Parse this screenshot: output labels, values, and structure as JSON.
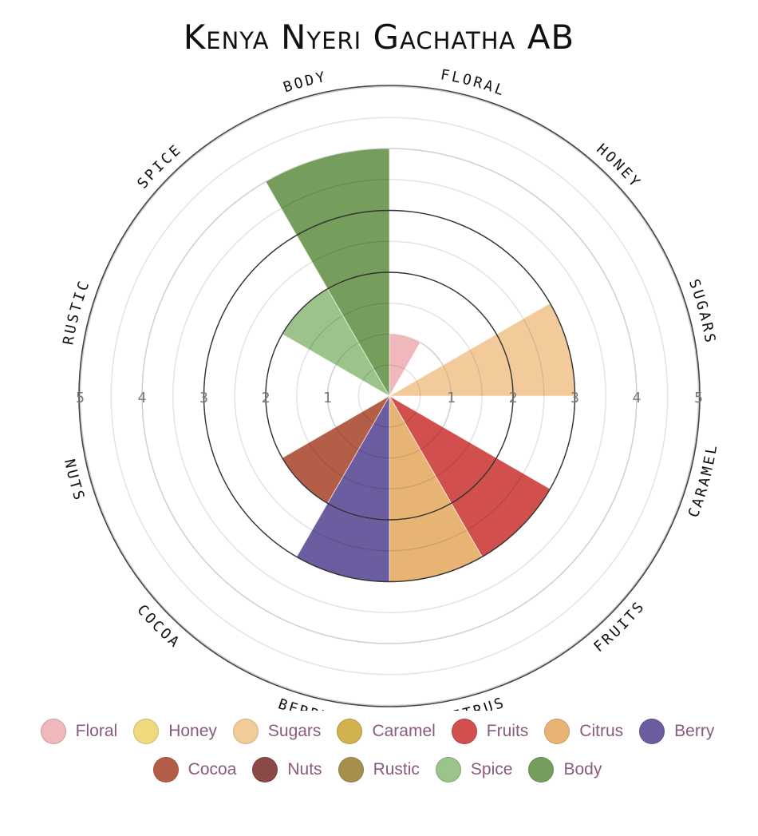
{
  "title": "Kenya Nyeri Gachatha AB",
  "chart_data": {
    "type": "polar-bar",
    "title": "Kenya Nyeri Gachatha AB",
    "categories": [
      "Floral",
      "Honey",
      "Sugars",
      "Caramel",
      "Fruits",
      "Citrus",
      "Berry",
      "Cocoa",
      "Nuts",
      "Rustic",
      "Spice",
      "Body"
    ],
    "axis_labels": [
      "FLORAL",
      "HONEY",
      "SUGARS",
      "CARAMEL",
      "FRUITS",
      "CITRUS",
      "BERRY",
      "COCOA",
      "NUTS",
      "RUSTIC",
      "SPICE",
      "BODY"
    ],
    "values": [
      1,
      0,
      3,
      0,
      3,
      3,
      3,
      2,
      0,
      0,
      2,
      4
    ],
    "colors": [
      "#f0b8ba",
      "#f2d97e",
      "#f3cb9a",
      "#d1b24e",
      "#d14f4c",
      "#e8b474",
      "#6b5da0",
      "#b45e48",
      "#8b4a48",
      "#a58f4a",
      "#9cc38a",
      "#759e5c"
    ],
    "rlim": [
      0,
      5
    ],
    "ticks": [
      "1",
      "2",
      "3",
      "4",
      "5"
    ],
    "grid": true,
    "legend_position": "bottom"
  },
  "legend": [
    {
      "label": "Floral",
      "color": "#f0b8ba"
    },
    {
      "label": "Honey",
      "color": "#f2d97e"
    },
    {
      "label": "Sugars",
      "color": "#f3cb9a"
    },
    {
      "label": "Caramel",
      "color": "#d1b24e"
    },
    {
      "label": "Fruits",
      "color": "#d14f4c"
    },
    {
      "label": "Citrus",
      "color": "#e8b474"
    },
    {
      "label": "Berry",
      "color": "#6b5da0"
    },
    {
      "label": "Cocoa",
      "color": "#b45e48"
    },
    {
      "label": "Nuts",
      "color": "#8b4a48"
    },
    {
      "label": "Rustic",
      "color": "#a58f4a"
    },
    {
      "label": "Spice",
      "color": "#9cc38a"
    },
    {
      "label": "Body",
      "color": "#759e5c"
    }
  ]
}
